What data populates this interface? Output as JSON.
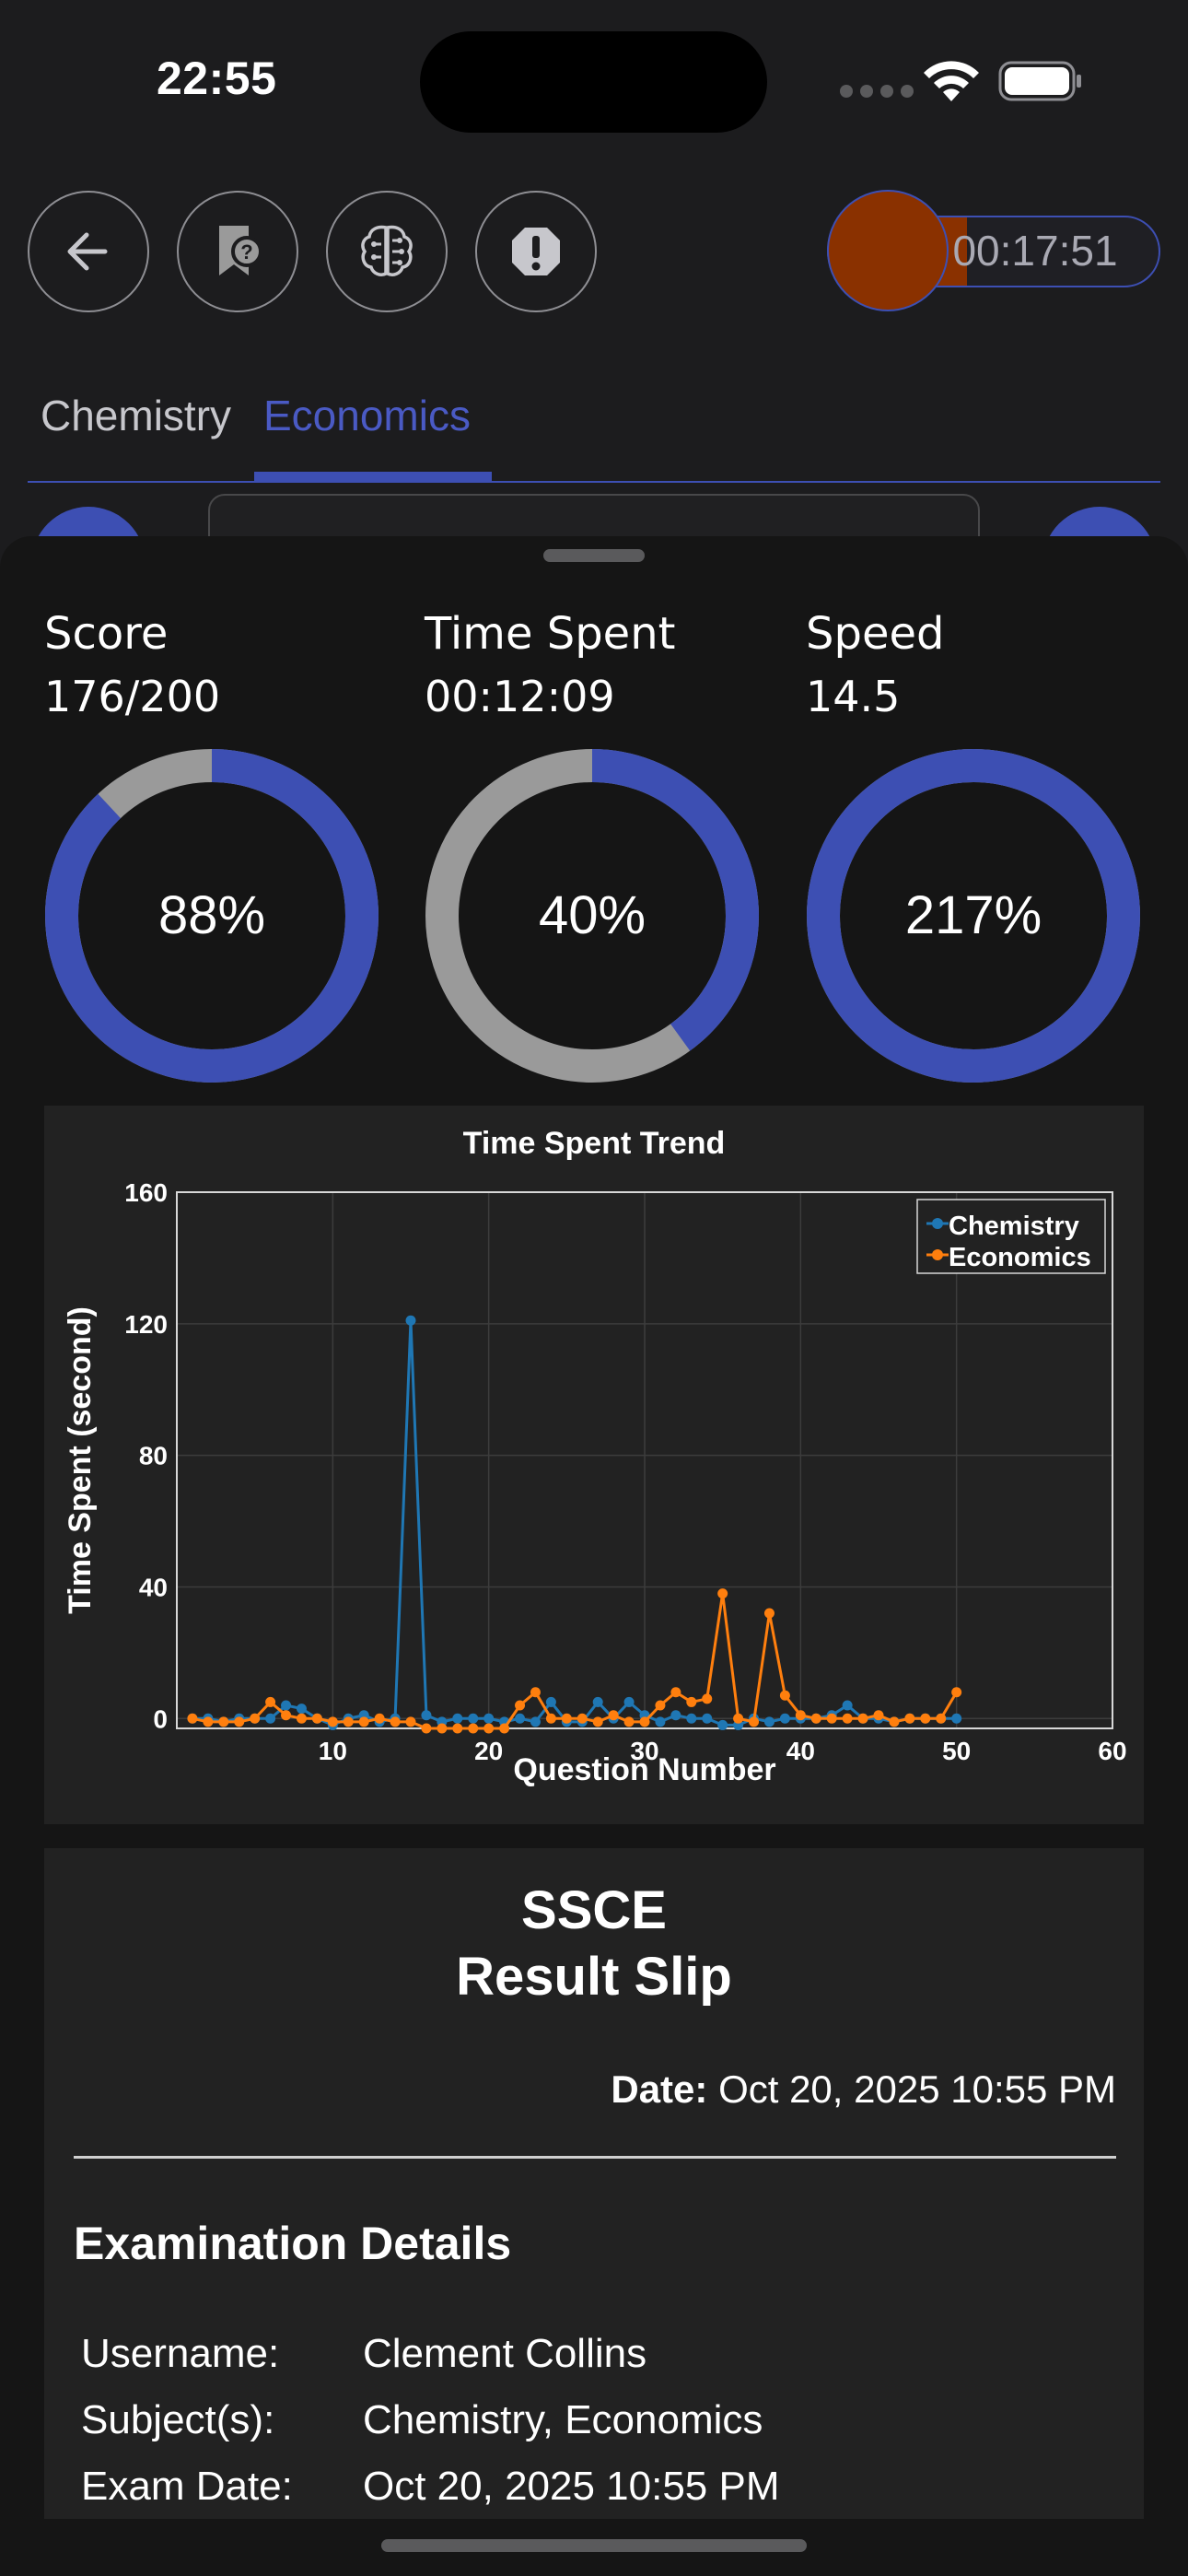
{
  "status_bar": {
    "time": "22:55"
  },
  "timer": {
    "value": "00:17:51",
    "progress": 0.42,
    "color": "#8a3100"
  },
  "toolbar": {
    "icons": [
      "back-arrow-icon",
      "bookmark-question-icon",
      "brain-circuit-icon",
      "alert-octagon-icon"
    ]
  },
  "tabs": [
    {
      "label": "Chemistry",
      "active": false
    },
    {
      "label": "Economics",
      "active": true
    }
  ],
  "metrics": [
    {
      "label": "Score",
      "value": "176/200",
      "percent_label": "88%",
      "percent": 88
    },
    {
      "label": "Time Spent",
      "value": "00:12:09",
      "percent_label": "40%",
      "percent": 40
    },
    {
      "label": "Speed",
      "value": "14.5",
      "percent_label": "217%",
      "percent": 217
    }
  ],
  "colors": {
    "accent": "#3d4fb3",
    "ring_track": "#9a9a9a",
    "chemistry": "#1f77b4",
    "economics": "#ff7f0e"
  },
  "chart_data": {
    "type": "line",
    "title": "Time Spent Trend",
    "xlabel": "Question Number",
    "ylabel": "Time Spent (second)",
    "xlim": [
      0,
      60
    ],
    "ylim": [
      -3,
      160
    ],
    "x_ticks": [
      10,
      20,
      30,
      40,
      50,
      60
    ],
    "y_ticks": [
      0,
      40,
      80,
      120,
      160
    ],
    "grid": true,
    "legend_position": "top-right",
    "series": [
      {
        "name": "Chemistry",
        "color": "#1f77b4",
        "x": [
          1,
          2,
          3,
          4,
          5,
          6,
          7,
          8,
          9,
          10,
          11,
          12,
          13,
          14,
          15,
          16,
          17,
          18,
          19,
          20,
          21,
          22,
          23,
          24,
          25,
          26,
          27,
          28,
          29,
          30,
          31,
          32,
          33,
          34,
          35,
          36,
          37,
          38,
          39,
          40,
          41,
          42,
          43,
          44,
          45,
          46,
          47,
          48,
          49,
          50
        ],
        "y": [
          0,
          0,
          -1,
          0,
          0,
          0,
          4,
          3,
          0,
          -2,
          0,
          1,
          -1,
          0,
          121,
          1,
          -1,
          0,
          0,
          0,
          -1,
          0,
          -1,
          5,
          -1,
          -1,
          5,
          0,
          5,
          1,
          -1,
          1,
          0,
          0,
          -2,
          -2,
          0,
          -1,
          0,
          0,
          0,
          1,
          4,
          0,
          0,
          -1,
          0,
          0,
          0,
          0
        ]
      },
      {
        "name": "Economics",
        "color": "#ff7f0e",
        "x": [
          1,
          2,
          3,
          4,
          5,
          6,
          7,
          8,
          9,
          10,
          11,
          12,
          13,
          14,
          15,
          16,
          17,
          18,
          19,
          20,
          21,
          22,
          23,
          24,
          25,
          26,
          27,
          28,
          29,
          30,
          31,
          32,
          33,
          34,
          35,
          36,
          37,
          38,
          39,
          40,
          41,
          42,
          43,
          44,
          45,
          46,
          47,
          48,
          49,
          50
        ],
        "y": [
          0,
          -1,
          -1,
          -1,
          0,
          5,
          1,
          0,
          0,
          -1,
          -1,
          -1,
          0,
          -1,
          -1,
          -3,
          -3,
          -3,
          -3,
          -3,
          -3,
          4,
          8,
          0,
          0,
          0,
          -1,
          1,
          -1,
          -1,
          4,
          8,
          5,
          6,
          38,
          0,
          -1,
          32,
          7,
          1,
          0,
          0,
          0,
          0,
          1,
          -1,
          0,
          0,
          0,
          8
        ]
      }
    ]
  },
  "slip": {
    "title_line1": "SSCE",
    "title_line2": "Result Slip",
    "date_label": "Date:",
    "date_value": "Oct 20, 2025 10:55 PM",
    "section_heading": "Examination Details",
    "details": [
      {
        "label": "Username:",
        "value": "Clement Collins"
      },
      {
        "label": "Subject(s):",
        "value": "Chemistry, Economics"
      },
      {
        "label": "Exam Date:",
        "value": "Oct 20, 2025 10:55 PM"
      }
    ]
  }
}
